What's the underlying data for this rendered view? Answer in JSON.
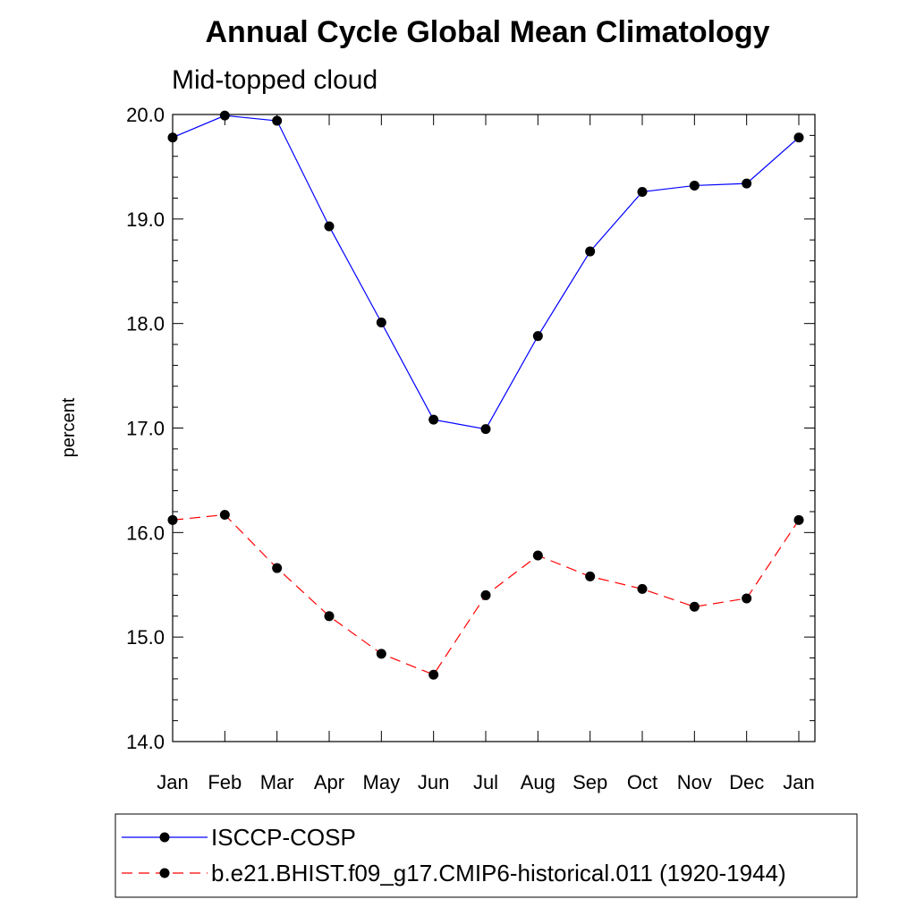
{
  "chart_data": {
    "type": "line",
    "title": "Annual Cycle Global Mean Climatology",
    "subtitle": "Mid-topped cloud",
    "xlabel": "",
    "ylabel": "percent",
    "categories": [
      "Jan",
      "Feb",
      "Mar",
      "Apr",
      "May",
      "Jun",
      "Jul",
      "Aug",
      "Sep",
      "Oct",
      "Nov",
      "Dec",
      "Jan"
    ],
    "ylim": [
      14.0,
      20.0
    ],
    "yticks": [
      "14.0",
      "15.0",
      "16.0",
      "17.0",
      "18.0",
      "19.0",
      "20.0"
    ],
    "grid": false,
    "legend_position": "bottom",
    "series": [
      {
        "name": "ISCCP-COSP",
        "color": "#0000ff",
        "dash": "solid",
        "marker": "filled-circle",
        "values": [
          19.78,
          19.99,
          19.94,
          18.93,
          18.01,
          17.08,
          16.99,
          17.88,
          18.69,
          19.26,
          19.32,
          19.34,
          19.78
        ]
      },
      {
        "name": "b.e21.BHIST.f09_g17.CMIP6-historical.011 (1920-1944)",
        "color": "#ff0000",
        "dash": "dashed",
        "marker": "filled-circle",
        "values": [
          16.12,
          16.17,
          15.66,
          15.2,
          14.84,
          14.64,
          15.4,
          15.78,
          15.58,
          15.46,
          15.29,
          15.37,
          16.12
        ]
      }
    ]
  }
}
